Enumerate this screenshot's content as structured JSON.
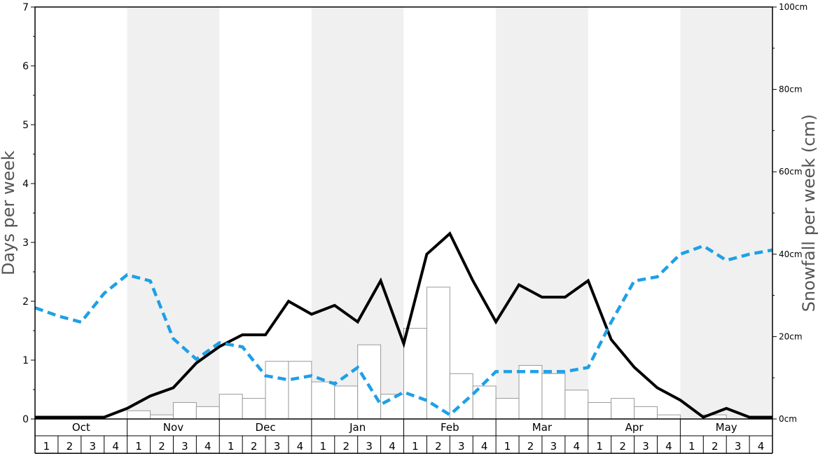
{
  "chart_data": {
    "type": "bar+line",
    "left_axis": {
      "label": "Days per week",
      "range": [
        0,
        7
      ],
      "ticks": [
        "0",
        "1",
        "2",
        "3",
        "4",
        "5",
        "6",
        "7"
      ]
    },
    "right_axis": {
      "label": "Snowfall per week (cm)",
      "range": [
        0,
        100
      ],
      "ticks": [
        "0cm",
        "20cm",
        "40cm",
        "60cm",
        "80cm",
        "100cm"
      ]
    },
    "months": [
      "Oct",
      "Nov",
      "Dec",
      "Jan",
      "Feb",
      "Mar",
      "Apr",
      "May"
    ],
    "week_labels": [
      "1",
      "2",
      "3",
      "4"
    ],
    "colors": {
      "bars_fill": "#ffffff",
      "bars_stroke": "#999999",
      "line_black": "#000000",
      "line_blue": "#1ea0e6",
      "band": "#f0f0f0"
    },
    "series": [
      {
        "kind": "bars",
        "axis": "right",
        "values": [
          0,
          0,
          0,
          0,
          2,
          1,
          4,
          3,
          6,
          5,
          14,
          14,
          9,
          8,
          18,
          6,
          22,
          32,
          11,
          8,
          5,
          13,
          11,
          7,
          4,
          5,
          3,
          1,
          0,
          1,
          0,
          0
        ]
      },
      {
        "kind": "line",
        "style": "solid",
        "axis": "left",
        "values": [
          0.03,
          0.03,
          0.03,
          0.03,
          0.18,
          0.39,
          0.53,
          0.95,
          1.23,
          1.43,
          1.43,
          2.0,
          1.78,
          1.93,
          1.65,
          2.35,
          1.28,
          2.8,
          3.15,
          2.35,
          1.65,
          2.28,
          2.07,
          2.07,
          2.35,
          1.35,
          0.88,
          0.53,
          0.32,
          0.03,
          0.18,
          0.03,
          0.03
        ]
      },
      {
        "kind": "line",
        "style": "dashed",
        "axis": "right",
        "values": [
          27,
          25,
          23.5,
          30.5,
          35,
          33.5,
          19.5,
          14.5,
          18.5,
          17.5,
          10.5,
          9.5,
          10.5,
          8.5,
          12.5,
          3.5,
          6.5,
          4.5,
          1,
          6,
          11.5,
          11.5,
          11.5,
          11.5,
          12.5,
          23.5,
          33.5,
          34.5,
          40,
          42,
          38.5,
          40,
          41
        ]
      }
    ]
  }
}
